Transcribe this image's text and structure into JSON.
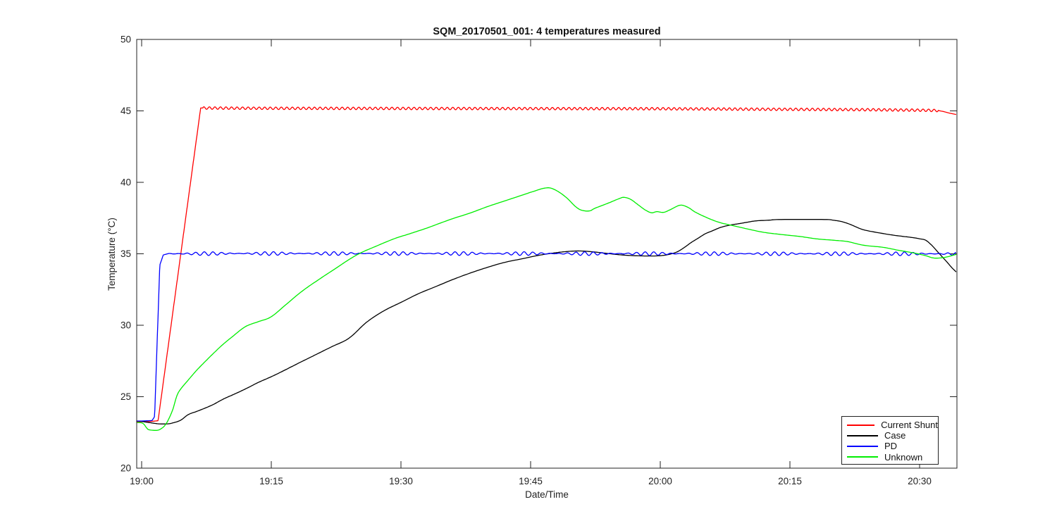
{
  "background_color": "#ffffff",
  "chart_data": {
    "type": "line",
    "title": "SQM_20170501_001: 4 temperatures measured",
    "xlabel": "Date/Time",
    "ylabel": "Temperature (°C)",
    "grid": false,
    "legend_position": "lower right",
    "x_axis": {
      "unit": "minutes since 19:00",
      "range": [
        -0.57,
        94.32
      ],
      "ticks": [
        {
          "t": 0,
          "label": "19:00"
        },
        {
          "t": 15,
          "label": "19:15"
        },
        {
          "t": 30,
          "label": "19:30"
        },
        {
          "t": 45,
          "label": "19:45"
        },
        {
          "t": 60,
          "label": "20:00"
        },
        {
          "t": 75,
          "label": "20:15"
        },
        {
          "t": 90,
          "label": "20:30"
        }
      ]
    },
    "y_axis": {
      "range": [
        20,
        50
      ],
      "ticks": [
        20,
        25,
        30,
        35,
        40,
        45,
        50
      ]
    },
    "series": [
      {
        "name": "Current Shunt",
        "color": "#ff0000",
        "smooth": false,
        "ripple": {
          "amplitude": 0.085,
          "period_min": 0.64,
          "t_start": 7.1,
          "t_end": 92.2,
          "mod_period_min": 0
        },
        "points": [
          [
            -0.57,
            23.25
          ],
          [
            0,
            23.25
          ],
          [
            1.3,
            23.28
          ],
          [
            1.9,
            23.32
          ],
          [
            6.83,
            45.2
          ],
          [
            15,
            45.18
          ],
          [
            30,
            45.17
          ],
          [
            45,
            45.16
          ],
          [
            60,
            45.15
          ],
          [
            70,
            45.12
          ],
          [
            78,
            45.1
          ],
          [
            84,
            45.08
          ],
          [
            88,
            45.06
          ],
          [
            91,
            45.04
          ],
          [
            92.2,
            45.02
          ],
          [
            92.8,
            44.95
          ],
          [
            93.4,
            44.85
          ],
          [
            94.2,
            44.75
          ]
        ]
      },
      {
        "name": "Case",
        "color": "#000000",
        "smooth": true,
        "points": [
          [
            -0.57,
            23.3
          ],
          [
            0,
            23.27
          ],
          [
            1,
            23.18
          ],
          [
            2,
            23.1
          ],
          [
            3,
            23.1
          ],
          [
            3.5,
            23.15
          ],
          [
            4.5,
            23.35
          ],
          [
            5.4,
            23.75
          ],
          [
            6.5,
            24.0
          ],
          [
            8.1,
            24.4
          ],
          [
            9.5,
            24.85
          ],
          [
            10.8,
            25.2
          ],
          [
            12.2,
            25.6
          ],
          [
            13.5,
            26.0
          ],
          [
            15,
            26.4
          ],
          [
            16.2,
            26.75
          ],
          [
            18,
            27.3
          ],
          [
            20,
            27.9
          ],
          [
            22,
            28.5
          ],
          [
            24,
            29.1
          ],
          [
            26,
            30.2
          ],
          [
            28,
            31.0
          ],
          [
            30,
            31.6
          ],
          [
            32,
            32.2
          ],
          [
            34,
            32.7
          ],
          [
            36,
            33.2
          ],
          [
            38,
            33.65
          ],
          [
            40,
            34.05
          ],
          [
            42,
            34.4
          ],
          [
            44,
            34.65
          ],
          [
            46,
            34.9
          ],
          [
            47.6,
            35.05
          ],
          [
            49,
            35.15
          ],
          [
            50.5,
            35.2
          ],
          [
            52,
            35.15
          ],
          [
            53.5,
            35.05
          ],
          [
            55,
            34.95
          ],
          [
            56.5,
            34.88
          ],
          [
            58,
            34.85
          ],
          [
            59.5,
            34.85
          ],
          [
            60.5,
            34.9
          ],
          [
            61.3,
            35.0
          ],
          [
            62,
            35.15
          ],
          [
            62.8,
            35.45
          ],
          [
            63.6,
            35.8
          ],
          [
            64.4,
            36.1
          ],
          [
            65.2,
            36.4
          ],
          [
            66,
            36.6
          ],
          [
            67,
            36.85
          ],
          [
            68,
            37.0
          ],
          [
            69,
            37.1
          ],
          [
            70,
            37.2
          ],
          [
            71,
            37.3
          ],
          [
            72.5,
            37.35
          ],
          [
            74,
            37.4
          ],
          [
            79,
            37.4
          ],
          [
            80,
            37.35
          ],
          [
            81,
            37.25
          ],
          [
            82,
            37.05
          ],
          [
            83.4,
            36.7
          ],
          [
            85,
            36.5
          ],
          [
            87,
            36.3
          ],
          [
            89,
            36.15
          ],
          [
            90,
            36.05
          ],
          [
            90.7,
            35.95
          ],
          [
            91.4,
            35.6
          ],
          [
            92,
            35.2
          ],
          [
            92.6,
            34.8
          ],
          [
            93.2,
            34.4
          ],
          [
            93.7,
            34.05
          ],
          [
            94.2,
            33.75
          ]
        ]
      },
      {
        "name": "PD",
        "color": "#0000ff",
        "smooth": false,
        "ripple": {
          "amplitude": 0.13,
          "period_min": 1.0,
          "t_start": 3.0,
          "t_end": 94.2,
          "mod_period_min": 7.3
        },
        "points": [
          [
            -0.57,
            23.3
          ],
          [
            0,
            23.3
          ],
          [
            1.2,
            23.33
          ],
          [
            1.5,
            23.6
          ],
          [
            2.1,
            34.2
          ],
          [
            2.5,
            34.92
          ],
          [
            3,
            35.0
          ],
          [
            10,
            35.02
          ],
          [
            30,
            35.02
          ],
          [
            60,
            35.01
          ],
          [
            94.2,
            35.0
          ]
        ]
      },
      {
        "name": "Unknown",
        "color": "#00ee00",
        "smooth": true,
        "points": [
          [
            -0.57,
            23.2
          ],
          [
            0,
            23.17
          ],
          [
            0.3,
            23.05
          ],
          [
            0.6,
            22.8
          ],
          [
            0.9,
            22.68
          ],
          [
            1.8,
            22.65
          ],
          [
            2.3,
            22.78
          ],
          [
            2.7,
            23.0
          ],
          [
            3.1,
            23.4
          ],
          [
            3.6,
            24.1
          ],
          [
            4.1,
            25.1
          ],
          [
            4.6,
            25.6
          ],
          [
            5.3,
            26.1
          ],
          [
            6,
            26.6
          ],
          [
            6.6,
            27.0
          ],
          [
            8,
            27.85
          ],
          [
            9.3,
            28.6
          ],
          [
            10.5,
            29.2
          ],
          [
            12,
            29.9
          ],
          [
            13.5,
            30.25
          ],
          [
            15,
            30.6
          ],
          [
            16.8,
            31.5
          ],
          [
            18.6,
            32.4
          ],
          [
            20.5,
            33.2
          ],
          [
            22.5,
            34.0
          ],
          [
            24,
            34.6
          ],
          [
            25.3,
            35.05
          ],
          [
            27,
            35.5
          ],
          [
            29.2,
            36.05
          ],
          [
            31,
            36.4
          ],
          [
            33,
            36.8
          ],
          [
            35.7,
            37.4
          ],
          [
            38,
            37.85
          ],
          [
            40,
            38.3
          ],
          [
            42,
            38.7
          ],
          [
            44,
            39.1
          ],
          [
            45.5,
            39.4
          ],
          [
            46.5,
            39.58
          ],
          [
            47.3,
            39.6
          ],
          [
            48.2,
            39.35
          ],
          [
            49.2,
            38.9
          ],
          [
            50.2,
            38.3
          ],
          [
            50.9,
            38.05
          ],
          [
            51.8,
            38.0
          ],
          [
            52.5,
            38.2
          ],
          [
            54,
            38.55
          ],
          [
            55.2,
            38.85
          ],
          [
            55.8,
            38.95
          ],
          [
            56.6,
            38.8
          ],
          [
            57.5,
            38.4
          ],
          [
            58.3,
            38.05
          ],
          [
            59,
            37.87
          ],
          [
            59.6,
            37.95
          ],
          [
            60.4,
            37.9
          ],
          [
            61.2,
            38.1
          ],
          [
            62.3,
            38.4
          ],
          [
            63.2,
            38.25
          ],
          [
            64.1,
            37.9
          ],
          [
            65.5,
            37.5
          ],
          [
            66.8,
            37.2
          ],
          [
            68.2,
            37.0
          ],
          [
            70,
            36.75
          ],
          [
            72,
            36.5
          ],
          [
            74,
            36.35
          ],
          [
            76.3,
            36.2
          ],
          [
            78,
            36.05
          ],
          [
            80,
            35.95
          ],
          [
            81.7,
            35.85
          ],
          [
            83.5,
            35.6
          ],
          [
            85.8,
            35.45
          ],
          [
            87.5,
            35.25
          ],
          [
            88.5,
            35.15
          ],
          [
            89.8,
            35.0
          ],
          [
            90.8,
            34.85
          ],
          [
            91.7,
            34.7
          ],
          [
            92.9,
            34.75
          ],
          [
            94.2,
            34.95
          ]
        ]
      }
    ]
  }
}
